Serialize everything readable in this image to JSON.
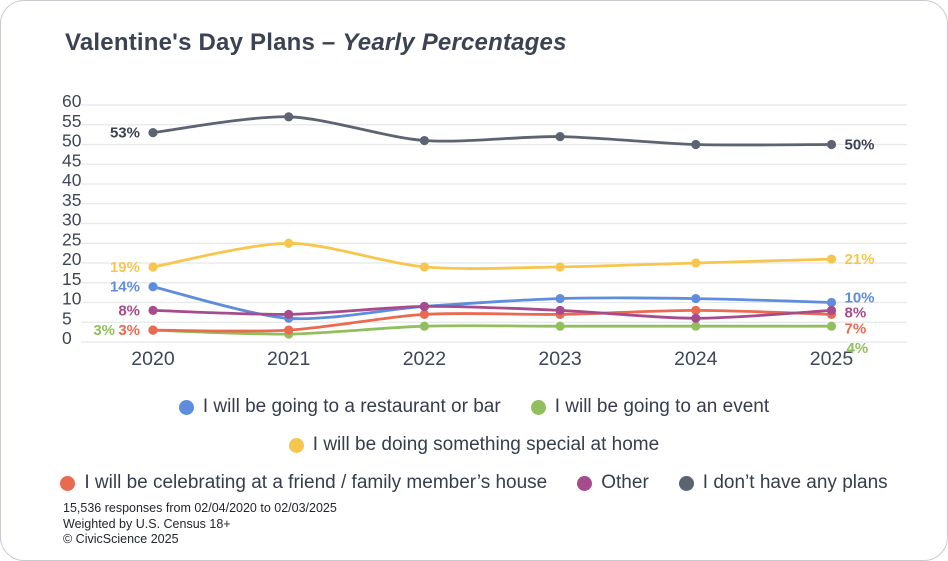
{
  "title": {
    "main": "Valentine's Day Plans –",
    "italic": "Yearly Percentages"
  },
  "chart_data": {
    "type": "line",
    "categories": [
      "2020",
      "2021",
      "2022",
      "2023",
      "2024",
      "2025"
    ],
    "series": [
      {
        "name": "I will be going to a restaurant or bar",
        "color": "#5e8edb",
        "values": [
          14,
          6,
          9,
          11,
          11,
          10
        ],
        "first_label": "14%",
        "last_label": "10%"
      },
      {
        "name": "I will be going to an event",
        "color": "#92bf5e",
        "values": [
          3,
          2,
          4,
          4,
          4,
          4
        ],
        "first_label": "3%",
        "last_label": "4%"
      },
      {
        "name": "I will be doing something special at home",
        "color": "#f6c64f",
        "values": [
          19,
          25,
          19,
          19,
          20,
          21
        ],
        "first_label": "19%",
        "last_label": "21%"
      },
      {
        "name": "I will be celebrating at a friend / family member’s house",
        "color": "#e96a51",
        "values": [
          3,
          3,
          7,
          7,
          8,
          7
        ],
        "first_label": "3%",
        "last_label": "7%"
      },
      {
        "name": "Other",
        "color": "#a64c8c",
        "values": [
          8,
          7,
          9,
          8,
          6,
          8
        ],
        "first_label": "8%",
        "last_label": "8%"
      },
      {
        "name": "I don’t have any plans",
        "color": "#5c6371",
        "label_color": "#3b4252",
        "values": [
          53,
          57,
          51,
          52,
          50,
          50
        ],
        "first_label": "53%",
        "last_label": "50%"
      }
    ],
    "ylim": [
      0,
      60
    ],
    "ytick_step": 5,
    "grid": true,
    "legend_position": "bottom",
    "legend_rows": [
      [
        0,
        1
      ],
      [
        2
      ],
      [
        3,
        4,
        5
      ]
    ]
  },
  "footer": {
    "line1": "15,536 responses from 02/04/2020 to 02/03/2025",
    "line2": "Weighted by U.S. Census 18+",
    "line3": "© CivicScience 2025"
  }
}
